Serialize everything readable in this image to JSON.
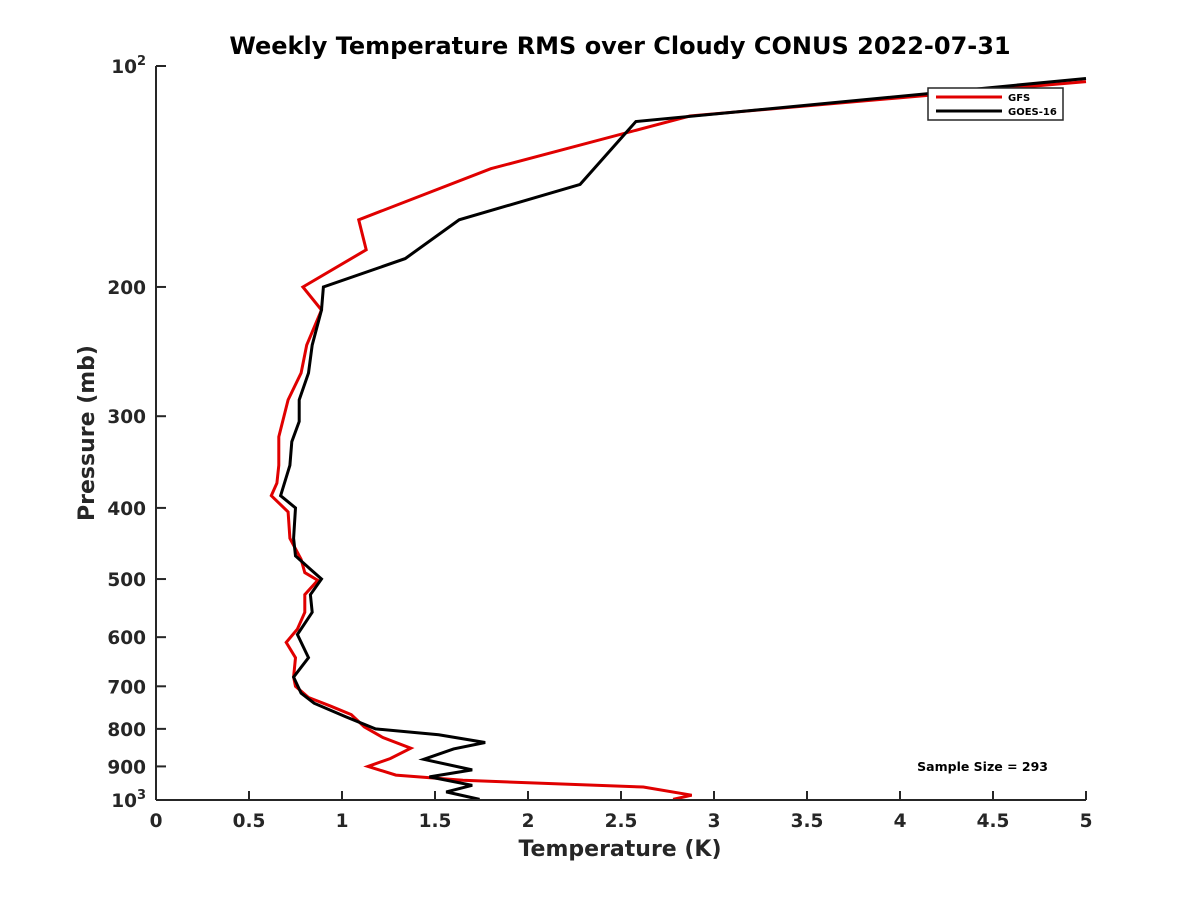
{
  "chart_data": {
    "type": "line",
    "title": "Weekly Temperature RMS over Cloudy CONUS 2022-07-31",
    "xlabel": "Temperature (K)",
    "ylabel": "Pressure (mb)",
    "xlim": [
      0,
      5
    ],
    "ylim": [
      100,
      1000
    ],
    "y_scale": "log",
    "y_reversed": true,
    "grid": false,
    "legend_position": "top-right",
    "x_ticks": [
      {
        "value": 0,
        "label": "0"
      },
      {
        "value": 0.5,
        "label": "0.5"
      },
      {
        "value": 1,
        "label": "1"
      },
      {
        "value": 1.5,
        "label": "1.5"
      },
      {
        "value": 2,
        "label": "2"
      },
      {
        "value": 2.5,
        "label": "2.5"
      },
      {
        "value": 3,
        "label": "3"
      },
      {
        "value": 3.5,
        "label": "3.5"
      },
      {
        "value": 4,
        "label": "4"
      },
      {
        "value": 4.5,
        "label": "4.5"
      },
      {
        "value": 5,
        "label": "5"
      }
    ],
    "y_ticks": [
      {
        "value": 100,
        "label": "10",
        "sup": "2"
      },
      {
        "value": 200,
        "label": "200"
      },
      {
        "value": 300,
        "label": "300"
      },
      {
        "value": 400,
        "label": "400"
      },
      {
        "value": 500,
        "label": "500"
      },
      {
        "value": 600,
        "label": "600"
      },
      {
        "value": 700,
        "label": "700"
      },
      {
        "value": 800,
        "label": "800"
      },
      {
        "value": 900,
        "label": "900"
      },
      {
        "value": 1000,
        "label": "10",
        "sup": "3"
      }
    ],
    "series": [
      {
        "name": "GFS",
        "color": "#e00000",
        "points": [
          [
            5.0,
            105
          ],
          [
            2.87,
            117
          ],
          [
            1.8,
            138
          ],
          [
            1.09,
            162
          ],
          [
            1.13,
            178
          ],
          [
            0.79,
            200
          ],
          [
            0.89,
            215
          ],
          [
            0.81,
            240
          ],
          [
            0.78,
            262
          ],
          [
            0.71,
            285
          ],
          [
            0.66,
            320
          ],
          [
            0.66,
            350
          ],
          [
            0.65,
            370
          ],
          [
            0.62,
            385
          ],
          [
            0.71,
            405
          ],
          [
            0.72,
            440
          ],
          [
            0.78,
            470
          ],
          [
            0.8,
            490
          ],
          [
            0.87,
            502
          ],
          [
            0.8,
            525
          ],
          [
            0.8,
            555
          ],
          [
            0.76,
            585
          ],
          [
            0.7,
            610
          ],
          [
            0.75,
            640
          ],
          [
            0.74,
            680
          ],
          [
            0.75,
            700
          ],
          [
            0.82,
            725
          ],
          [
            0.94,
            745
          ],
          [
            1.05,
            765
          ],
          [
            1.12,
            795
          ],
          [
            1.22,
            822
          ],
          [
            1.37,
            850
          ],
          [
            1.26,
            878
          ],
          [
            1.14,
            900
          ],
          [
            1.29,
            925
          ],
          [
            1.65,
            940
          ],
          [
            2.62,
            960
          ],
          [
            2.88,
            985
          ],
          [
            2.78,
            998
          ]
        ]
      },
      {
        "name": "GOES-16",
        "color": "#000000",
        "points": [
          [
            5.0,
            104
          ],
          [
            2.58,
            119
          ],
          [
            2.28,
            145
          ],
          [
            1.63,
            162
          ],
          [
            1.34,
            183
          ],
          [
            0.9,
            200
          ],
          [
            0.89,
            215
          ],
          [
            0.84,
            240
          ],
          [
            0.82,
            262
          ],
          [
            0.77,
            285
          ],
          [
            0.77,
            305
          ],
          [
            0.73,
            325
          ],
          [
            0.72,
            350
          ],
          [
            0.67,
            385
          ],
          [
            0.75,
            400
          ],
          [
            0.74,
            440
          ],
          [
            0.75,
            465
          ],
          [
            0.83,
            485
          ],
          [
            0.89,
            500
          ],
          [
            0.83,
            525
          ],
          [
            0.84,
            555
          ],
          [
            0.76,
            595
          ],
          [
            0.82,
            640
          ],
          [
            0.74,
            680
          ],
          [
            0.78,
            715
          ],
          [
            0.85,
            738
          ],
          [
            1.02,
            770
          ],
          [
            1.18,
            800
          ],
          [
            1.52,
            815
          ],
          [
            1.77,
            835
          ],
          [
            1.6,
            852
          ],
          [
            1.44,
            880
          ],
          [
            1.7,
            910
          ],
          [
            1.47,
            930
          ],
          [
            1.7,
            955
          ],
          [
            1.56,
            975
          ],
          [
            1.74,
            998
          ]
        ]
      }
    ],
    "annotations": [
      {
        "text": "Sample Size = 293",
        "position": "bottom-right"
      }
    ]
  }
}
